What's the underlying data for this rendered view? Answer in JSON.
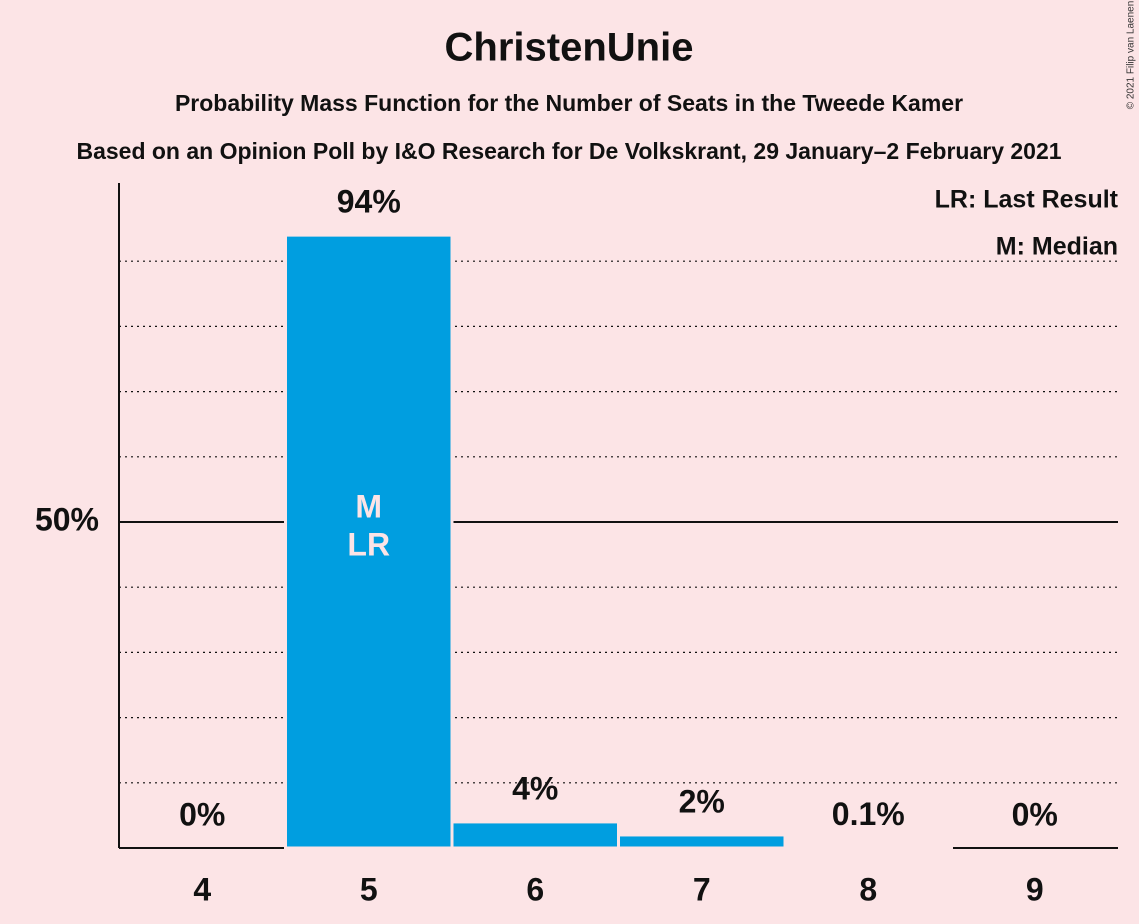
{
  "chart_data": {
    "type": "bar",
    "title": "ChristenUnie",
    "subtitle": "Probability Mass Function for the Number of Seats in the Tweede Kamer",
    "subtitle2": "Based on an Opinion Poll by I&O Research for De Volkskrant, 29 January–2 February 2021",
    "copyright": "© 2021 Filip van Laenen",
    "categories": [
      4,
      5,
      6,
      7,
      8,
      9
    ],
    "values": [
      0,
      94,
      4,
      2,
      0.1,
      0
    ],
    "value_labels": [
      "0%",
      "94%",
      "4%",
      "2%",
      "0.1%",
      "0%"
    ],
    "color": "#009ee0",
    "ylim": [
      0,
      102
    ],
    "yticks": [
      {
        "value": 50,
        "label": "50%"
      }
    ],
    "grid_yticks": [
      10,
      20,
      30,
      40,
      60,
      70,
      80,
      90
    ],
    "legend": [
      "LR: Last Result",
      "M: Median"
    ],
    "annotations": [
      {
        "category": 5,
        "lines": [
          "M",
          "LR"
        ]
      }
    ]
  }
}
